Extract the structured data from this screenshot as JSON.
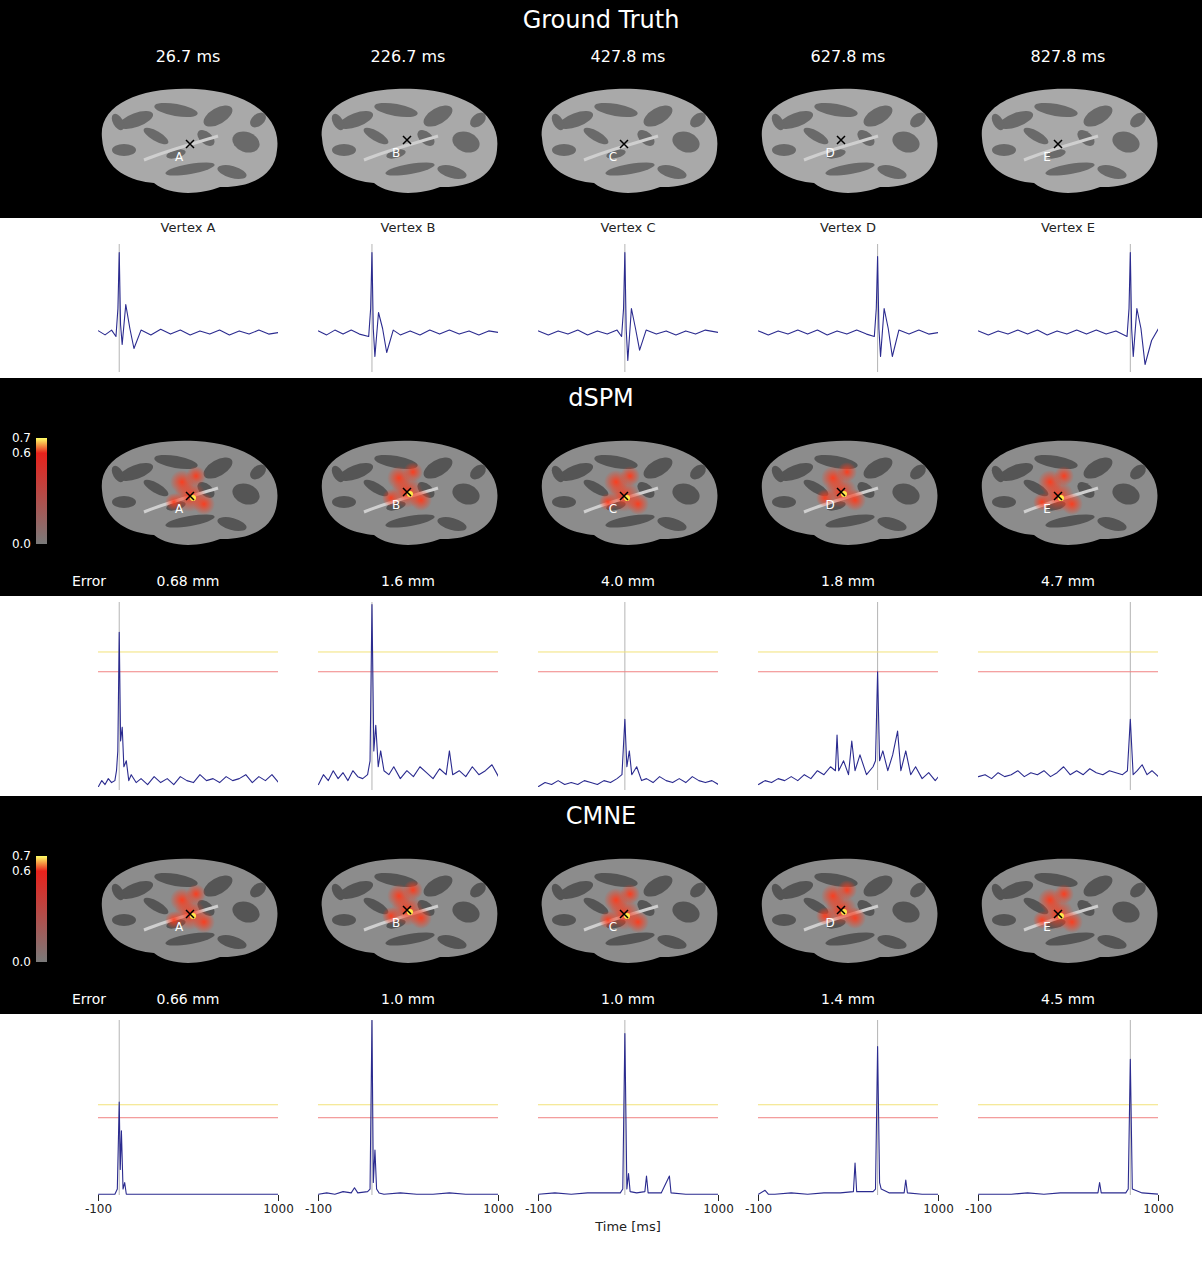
{
  "figure": {
    "sections": [
      {
        "title": "Ground Truth",
        "brain_labels": [
          "26.7 ms",
          "226.7 ms",
          "427.8 ms",
          "627.8 ms",
          "827.8 ms"
        ],
        "vertices": [
          "A",
          "B",
          "C",
          "D",
          "E"
        ]
      },
      {
        "title": "dSPM",
        "vertices": [
          "A",
          "B",
          "C",
          "D",
          "E"
        ],
        "colorbar": {
          "range": [
            0,
            0.7
          ],
          "ticks": [
            {
              "value": 0,
              "label": "0.0"
            },
            {
              "value": 0.6,
              "label": "0.6"
            },
            {
              "value": 0.7,
              "label": "0.7"
            }
          ]
        },
        "error_label": "Error",
        "errors": [
          "0.68 mm",
          "1.6 mm",
          "4.0 mm",
          "1.8 mm",
          "4.7 mm"
        ]
      },
      {
        "title": "CMNE",
        "vertices": [
          "A",
          "B",
          "C",
          "D",
          "E"
        ],
        "colorbar": {
          "range": [
            0,
            0.7
          ],
          "ticks": [
            {
              "value": 0,
              "label": "0.0"
            },
            {
              "value": 0.6,
              "label": "0.6"
            },
            {
              "value": 0.7,
              "label": "0.7"
            }
          ]
        },
        "error_label": "Error",
        "errors": [
          "0.66 mm",
          "1.0 mm",
          "1.0 mm",
          "1.4 mm",
          "4.5 mm"
        ]
      }
    ],
    "time_label": "Time [ms]"
  },
  "chart_data": [
    {
      "type": "line",
      "title": "Vertex A",
      "color": "#2b2b8f",
      "xlim": [
        -100,
        1000
      ],
      "ylim": [
        -0.5,
        1.1
      ],
      "tick_labels": false,
      "event_time": 26.7,
      "x": [
        -100,
        -60,
        -20,
        6.7,
        18.7,
        26.7,
        34.7,
        44.7,
        66.7,
        91.7,
        116.7,
        160,
        220,
        280,
        340,
        400,
        460,
        520,
        580,
        640,
        700,
        760,
        820,
        880,
        940,
        1000
      ],
      "values": [
        0.02,
        -0.03,
        0.03,
        -0.05,
        0.3,
        1.0,
        0.1,
        -0.15,
        0.35,
        0.05,
        -0.2,
        0.03,
        -0.03,
        0.04,
        -0.02,
        0.03,
        -0.03,
        0.02,
        -0.02,
        0.03,
        -0.03,
        0.02,
        -0.02,
        0.03,
        -0.02,
        0.0
      ]
    },
    {
      "type": "line",
      "title": "Vertex B",
      "color": "#2b2b8f",
      "xlim": [
        -100,
        1000
      ],
      "ylim": [
        -0.5,
        1.1
      ],
      "tick_labels": false,
      "event_time": 226.7,
      "x": [
        -100,
        -50,
        0,
        50,
        100,
        150,
        206.7,
        218.7,
        226.7,
        234.7,
        244.7,
        266.7,
        291.7,
        316.7,
        356.7,
        400,
        460,
        520,
        580,
        640,
        700,
        760,
        820,
        880,
        940,
        1000
      ],
      "values": [
        0.02,
        -0.03,
        0.03,
        -0.02,
        0.03,
        -0.02,
        -0.05,
        0.3,
        1.0,
        0.05,
        -0.3,
        0.25,
        0.05,
        -0.25,
        0.03,
        -0.03,
        0.02,
        -0.03,
        0.03,
        -0.02,
        0.03,
        -0.02,
        0.02,
        -0.03,
        0.02,
        0.0
      ]
    },
    {
      "type": "line",
      "title": "Vertex C",
      "color": "#2b2b8f",
      "xlim": [
        -100,
        1000
      ],
      "ylim": [
        -0.5,
        1.1
      ],
      "tick_labels": false,
      "event_time": 427.8,
      "x": [
        -100,
        -40,
        20,
        80,
        140,
        200,
        260,
        320,
        380,
        407.8,
        419.8,
        427.8,
        435.8,
        445.8,
        467.8,
        492.8,
        517.8,
        557.8,
        620,
        680,
        740,
        800,
        860,
        920,
        1000
      ],
      "values": [
        0.02,
        -0.03,
        0.02,
        -0.02,
        0.03,
        -0.03,
        0.02,
        -0.02,
        0.03,
        -0.05,
        0.3,
        1.0,
        0.05,
        -0.35,
        0.3,
        0.05,
        -0.22,
        0.03,
        -0.02,
        0.02,
        -0.03,
        0.02,
        -0.02,
        0.03,
        0.0
      ]
    },
    {
      "type": "line",
      "title": "Vertex D",
      "color": "#2b2b8f",
      "xlim": [
        -100,
        1000
      ],
      "ylim": [
        -0.5,
        1.1
      ],
      "tick_labels": false,
      "event_time": 627.8,
      "x": [
        -100,
        -40,
        20,
        80,
        140,
        200,
        260,
        320,
        380,
        440,
        500,
        560,
        607.8,
        619.8,
        627.8,
        635.8,
        645.8,
        667.8,
        692.8,
        717.8,
        757.8,
        820,
        880,
        940,
        1000
      ],
      "values": [
        0.02,
        -0.03,
        0.02,
        -0.02,
        0.03,
        -0.02,
        0.03,
        -0.03,
        0.02,
        -0.02,
        0.03,
        -0.02,
        -0.05,
        0.3,
        0.95,
        0.05,
        -0.3,
        0.3,
        0.05,
        -0.3,
        0.03,
        -0.02,
        0.03,
        -0.02,
        0.0
      ]
    },
    {
      "type": "line",
      "title": "Vertex E",
      "color": "#2b2b8f",
      "xlim": [
        -100,
        1000
      ],
      "ylim": [
        -0.5,
        1.1
      ],
      "tick_labels": false,
      "event_time": 827.8,
      "x": [
        -100,
        -40,
        20,
        80,
        140,
        200,
        260,
        320,
        380,
        440,
        500,
        560,
        620,
        680,
        740,
        807.8,
        819.8,
        827.8,
        835.8,
        845.8,
        867.8,
        892.8,
        917.8,
        957.8,
        1000
      ],
      "values": [
        0.02,
        -0.03,
        0.02,
        -0.02,
        0.03,
        -0.02,
        0.03,
        -0.03,
        0.02,
        -0.02,
        0.03,
        -0.02,
        0.03,
        -0.02,
        0.02,
        -0.05,
        0.3,
        1.0,
        0.05,
        -0.3,
        0.3,
        0.05,
        -0.4,
        -0.1,
        0.05
      ]
    },
    {
      "type": "line",
      "color": "#2b2b8f",
      "xlim": [
        -100,
        1000
      ],
      "ylim": [
        0,
        0.95
      ],
      "tick_labels": false,
      "event_time": 26.7,
      "thresholds": [
        {
          "value": 0.7,
          "color": "#f2e27a"
        },
        {
          "value": 0.6,
          "color": "#f08282"
        }
      ],
      "x": [
        -100,
        -80,
        -60,
        -40,
        -20,
        0,
        10,
        18,
        26.7,
        35,
        45,
        55,
        70,
        85,
        100,
        130,
        160,
        200,
        240,
        280,
        320,
        360,
        400,
        440,
        480,
        520,
        560,
        600,
        640,
        680,
        720,
        760,
        800,
        840,
        880,
        920,
        960,
        1000
      ],
      "values": [
        0.02,
        0.05,
        0.03,
        0.06,
        0.04,
        0.05,
        0.1,
        0.2,
        0.8,
        0.25,
        0.32,
        0.12,
        0.15,
        0.05,
        0.08,
        0.04,
        0.06,
        0.03,
        0.07,
        0.04,
        0.06,
        0.03,
        0.07,
        0.05,
        0.04,
        0.08,
        0.05,
        0.06,
        0.04,
        0.07,
        0.05,
        0.06,
        0.08,
        0.04,
        0.07,
        0.05,
        0.08,
        0.04
      ]
    },
    {
      "type": "line",
      "color": "#2b2b8f",
      "xlim": [
        -100,
        1000
      ],
      "ylim": [
        0,
        0.95
      ],
      "tick_labels": false,
      "event_time": 226.7,
      "thresholds": [
        {
          "value": 0.7,
          "color": "#f2e27a"
        },
        {
          "value": 0.6,
          "color": "#f08282"
        }
      ],
      "x": [
        -100,
        -70,
        -40,
        -10,
        20,
        50,
        80,
        110,
        140,
        170,
        200,
        215,
        226.7,
        238,
        250,
        265,
        280,
        300,
        330,
        360,
        400,
        440,
        480,
        520,
        560,
        600,
        640,
        680,
        700,
        720,
        760,
        800,
        840,
        880,
        920,
        960,
        1000
      ],
      "values": [
        0.03,
        0.08,
        0.05,
        0.1,
        0.06,
        0.09,
        0.05,
        0.1,
        0.07,
        0.06,
        0.08,
        0.15,
        0.94,
        0.2,
        0.33,
        0.12,
        0.2,
        0.1,
        0.08,
        0.12,
        0.06,
        0.1,
        0.07,
        0.12,
        0.09,
        0.06,
        0.11,
        0.08,
        0.2,
        0.08,
        0.1,
        0.07,
        0.12,
        0.08,
        0.1,
        0.13,
        0.07
      ]
    },
    {
      "type": "line",
      "color": "#2b2b8f",
      "xlim": [
        -100,
        1000
      ],
      "ylim": [
        0,
        0.95
      ],
      "tick_labels": false,
      "event_time": 427.8,
      "thresholds": [
        {
          "value": 0.7,
          "color": "#f2e27a"
        },
        {
          "value": 0.6,
          "color": "#f08282"
        }
      ],
      "x": [
        -100,
        -60,
        -20,
        20,
        60,
        100,
        140,
        180,
        220,
        260,
        300,
        340,
        380,
        410,
        427.8,
        440,
        455,
        470,
        500,
        530,
        560,
        600,
        640,
        680,
        720,
        760,
        800,
        840,
        880,
        920,
        960,
        1000
      ],
      "values": [
        0.02,
        0.04,
        0.03,
        0.05,
        0.03,
        0.04,
        0.03,
        0.05,
        0.04,
        0.03,
        0.05,
        0.04,
        0.06,
        0.08,
        0.36,
        0.12,
        0.2,
        0.08,
        0.12,
        0.05,
        0.06,
        0.04,
        0.07,
        0.05,
        0.04,
        0.06,
        0.04,
        0.07,
        0.05,
        0.04,
        0.05,
        0.03
      ]
    },
    {
      "type": "line",
      "color": "#2b2b8f",
      "xlim": [
        -100,
        1000
      ],
      "ylim": [
        0,
        0.95
      ],
      "tick_labels": false,
      "event_time": 627.8,
      "thresholds": [
        {
          "value": 0.7,
          "color": "#f2e27a"
        },
        {
          "value": 0.6,
          "color": "#f08282"
        }
      ],
      "x": [
        -100,
        -60,
        -20,
        20,
        60,
        100,
        140,
        180,
        220,
        260,
        300,
        340,
        370,
        380,
        390,
        420,
        450,
        470,
        490,
        520,
        560,
        600,
        615,
        627.8,
        640,
        660,
        690,
        720,
        750,
        770,
        800,
        830,
        860,
        900,
        940,
        980,
        1000
      ],
      "values": [
        0.03,
        0.05,
        0.04,
        0.06,
        0.05,
        0.07,
        0.05,
        0.08,
        0.06,
        0.1,
        0.08,
        0.12,
        0.1,
        0.28,
        0.1,
        0.15,
        0.08,
        0.25,
        0.1,
        0.18,
        0.08,
        0.12,
        0.15,
        0.6,
        0.15,
        0.2,
        0.1,
        0.18,
        0.3,
        0.1,
        0.2,
        0.08,
        0.12,
        0.06,
        0.09,
        0.05,
        0.07
      ]
    },
    {
      "type": "line",
      "color": "#2b2b8f",
      "xlim": [
        -100,
        1000
      ],
      "ylim": [
        0,
        0.95
      ],
      "tick_labels": false,
      "event_time": 827.8,
      "thresholds": [
        {
          "value": 0.7,
          "color": "#f2e27a"
        },
        {
          "value": 0.6,
          "color": "#f08282"
        }
      ],
      "x": [
        -100,
        -60,
        -20,
        20,
        60,
        100,
        140,
        180,
        220,
        260,
        300,
        340,
        380,
        420,
        460,
        500,
        540,
        580,
        620,
        660,
        700,
        740,
        780,
        810,
        827.8,
        845,
        870,
        900,
        930,
        960,
        1000
      ],
      "values": [
        0.07,
        0.08,
        0.06,
        0.09,
        0.07,
        0.08,
        0.1,
        0.07,
        0.09,
        0.08,
        0.1,
        0.07,
        0.09,
        0.12,
        0.08,
        0.1,
        0.08,
        0.11,
        0.09,
        0.08,
        0.1,
        0.09,
        0.08,
        0.1,
        0.36,
        0.08,
        0.1,
        0.13,
        0.08,
        0.1,
        0.07
      ]
    },
    {
      "type": "line",
      "color": "#2b2b8f",
      "xlim": [
        -100,
        1000
      ],
      "ylim": [
        0,
        1.35
      ],
      "tick_labels": "x",
      "xticks": [
        -100,
        1000
      ],
      "event_time": 26.7,
      "thresholds": [
        {
          "value": 0.7,
          "color": "#f2e27a"
        },
        {
          "value": 0.6,
          "color": "#f08282"
        }
      ],
      "x": [
        -100,
        -50,
        0,
        15,
        26.7,
        33,
        40,
        50,
        60,
        70,
        100,
        200,
        300,
        400,
        500,
        600,
        700,
        800,
        900,
        1000
      ],
      "values": [
        0.01,
        0.01,
        0.01,
        0.05,
        0.72,
        0.2,
        0.5,
        0.05,
        0.1,
        0.01,
        0.01,
        0.01,
        0.01,
        0.01,
        0.01,
        0.01,
        0.01,
        0.01,
        0.01,
        0.01
      ]
    },
    {
      "type": "line",
      "color": "#2b2b8f",
      "xlim": [
        -100,
        1000
      ],
      "ylim": [
        0,
        1.35
      ],
      "tick_labels": "x",
      "xticks": [
        -100,
        1000
      ],
      "event_time": 226.7,
      "thresholds": [
        {
          "value": 0.7,
          "color": "#f2e27a"
        },
        {
          "value": 0.6,
          "color": "#f08282"
        }
      ],
      "x": [
        -100,
        -50,
        0,
        50,
        100,
        120,
        140,
        200,
        215,
        226.7,
        235,
        245,
        255,
        270,
        300,
        400,
        500,
        600,
        700,
        800,
        900,
        1000
      ],
      "values": [
        0.01,
        0.02,
        0.01,
        0.03,
        0.02,
        0.06,
        0.02,
        0.03,
        0.05,
        1.35,
        0.1,
        0.35,
        0.05,
        0.02,
        0.01,
        0.02,
        0.01,
        0.01,
        0.02,
        0.01,
        0.01,
        0.01
      ]
    },
    {
      "type": "line",
      "color": "#2b2b8f",
      "xlim": [
        -100,
        1000
      ],
      "ylim": [
        0,
        1.35
      ],
      "tick_labels": "x",
      "xticks": [
        -100,
        1000
      ],
      "event_time": 427.8,
      "thresholds": [
        {
          "value": 0.7,
          "color": "#f2e27a"
        },
        {
          "value": 0.6,
          "color": "#f08282"
        }
      ],
      "x": [
        -100,
        0,
        100,
        200,
        300,
        400,
        415,
        427.8,
        440,
        450,
        460,
        500,
        550,
        560,
        570,
        650,
        700,
        710,
        800,
        900,
        1000
      ],
      "values": [
        0.01,
        0.02,
        0.01,
        0.02,
        0.02,
        0.02,
        0.05,
        1.25,
        0.05,
        0.17,
        0.03,
        0.02,
        0.03,
        0.15,
        0.02,
        0.02,
        0.15,
        0.02,
        0.01,
        0.01,
        0.01
      ]
    },
    {
      "type": "line",
      "color": "#2b2b8f",
      "xlim": [
        -100,
        1000
      ],
      "ylim": [
        0,
        1.35
      ],
      "tick_labels": "x",
      "xticks": [
        -100,
        1000
      ],
      "event_time": 627.8,
      "thresholds": [
        {
          "value": 0.7,
          "color": "#f2e27a"
        },
        {
          "value": 0.6,
          "color": "#f08282"
        }
      ],
      "x": [
        -100,
        -60,
        -40,
        0,
        100,
        200,
        300,
        400,
        480,
        490,
        500,
        600,
        615,
        627.8,
        640,
        650,
        700,
        790,
        800,
        810,
        900,
        1000
      ],
      "values": [
        0.01,
        0.04,
        0.01,
        0.01,
        0.02,
        0.01,
        0.02,
        0.02,
        0.03,
        0.25,
        0.03,
        0.03,
        0.05,
        1.15,
        0.1,
        0.05,
        0.02,
        0.02,
        0.12,
        0.02,
        0.01,
        0.01
      ]
    },
    {
      "type": "line",
      "color": "#2b2b8f",
      "xlim": [
        -100,
        1000
      ],
      "ylim": [
        0,
        1.35
      ],
      "tick_labels": "x",
      "xticks": [
        -100,
        1000
      ],
      "event_time": 827.8,
      "thresholds": [
        {
          "value": 0.7,
          "color": "#f2e27a"
        },
        {
          "value": 0.6,
          "color": "#f08282"
        }
      ],
      "x": [
        -100,
        0,
        100,
        200,
        300,
        400,
        500,
        600,
        630,
        640,
        650,
        700,
        800,
        815,
        827.8,
        840,
        900,
        1000
      ],
      "values": [
        0.01,
        0.01,
        0.01,
        0.02,
        0.01,
        0.02,
        0.02,
        0.02,
        0.02,
        0.1,
        0.02,
        0.02,
        0.02,
        0.05,
        1.05,
        0.05,
        0.02,
        0.01
      ]
    }
  ]
}
